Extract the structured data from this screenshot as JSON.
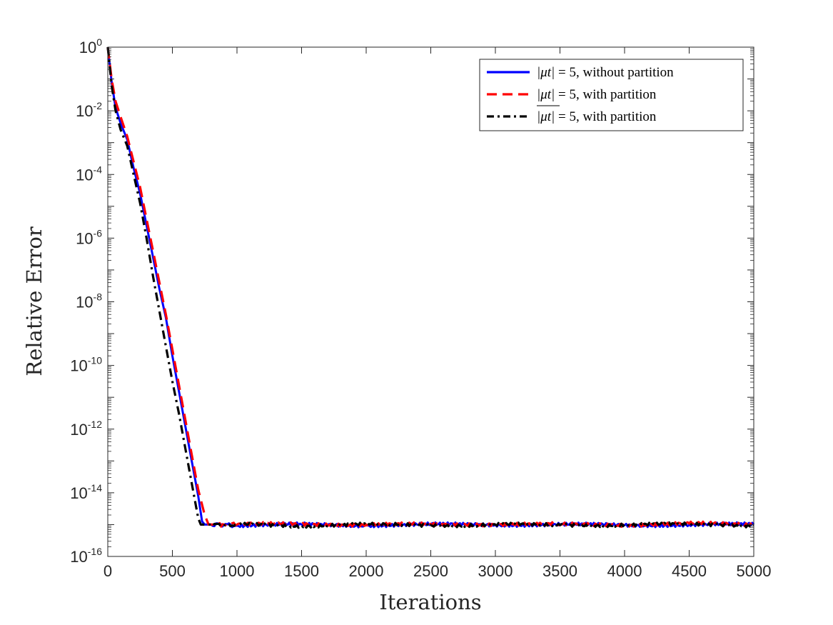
{
  "chart_data": {
    "type": "line",
    "xlabel": "Iterations",
    "ylabel": "Relative Error",
    "xlim": [
      0,
      5000
    ],
    "ylim": [
      1e-16,
      1
    ],
    "yscale": "log",
    "xticks": [
      0,
      500,
      1000,
      1500,
      2000,
      2500,
      3000,
      3500,
      4000,
      4500,
      5000
    ],
    "xtick_labels": [
      "0",
      "500",
      "1000",
      "1500",
      "2000",
      "2500",
      "3000",
      "3500",
      "4000",
      "4500",
      "5000"
    ],
    "yticks": [
      0,
      -2,
      -4,
      -6,
      -8,
      -10,
      -12,
      -14,
      -16
    ],
    "ytick_labels": [
      {
        "base": "10",
        "exp": "0"
      },
      {
        "base": "10",
        "exp": "-2"
      },
      {
        "base": "10",
        "exp": "-4"
      },
      {
        "base": "10",
        "exp": "-6"
      },
      {
        "base": "10",
        "exp": "-8"
      },
      {
        "base": "10",
        "exp": "-10"
      },
      {
        "base": "10",
        "exp": "-12"
      },
      {
        "base": "10",
        "exp": "-14"
      },
      {
        "base": "10",
        "exp": "-16"
      }
    ],
    "grid": false,
    "legend_position": "top-right",
    "series": [
      {
        "name": "|μt| = 5, without partition",
        "legend_math": "|μt|",
        "legend_text": " = 5, without partition",
        "color": "#0000ff",
        "style": "solid",
        "x": [
          0,
          30,
          60,
          100,
          150,
          200,
          250,
          300,
          350,
          400,
          450,
          500,
          550,
          600,
          650,
          700,
          730,
          750,
          800,
          900,
          1000,
          1500,
          2000,
          2500,
          3000,
          3500,
          4000,
          4500,
          5000
        ],
        "log10_y": [
          0,
          -1.1,
          -1.9,
          -2.4,
          -2.9,
          -3.8,
          -4.6,
          -5.6,
          -6.6,
          -7.6,
          -8.5,
          -9.7,
          -10.8,
          -11.9,
          -13.0,
          -14.1,
          -14.9,
          -15.0,
          -15.0,
          -15.0,
          -15.03,
          -15.0,
          -15.02,
          -15.0,
          -15.0,
          -15.0,
          -15.02,
          -15.0,
          -15.0
        ]
      },
      {
        "name": "|μt| = 5, with partition",
        "legend_math": "|μt|",
        "legend_text": " = 5, with partition",
        "color": "#ff0000",
        "style": "dashed",
        "x": [
          0,
          30,
          60,
          100,
          150,
          200,
          250,
          300,
          350,
          400,
          450,
          500,
          550,
          600,
          650,
          700,
          750,
          780,
          820,
          900,
          1000,
          1500,
          2000,
          2500,
          3000,
          3500,
          4000,
          4500,
          5000
        ],
        "log10_y": [
          0,
          -1.0,
          -1.7,
          -2.2,
          -2.8,
          -3.6,
          -4.4,
          -5.4,
          -6.4,
          -7.4,
          -8.4,
          -9.5,
          -10.6,
          -11.7,
          -12.8,
          -13.9,
          -14.7,
          -15.0,
          -15.0,
          -15.0,
          -15.0,
          -14.98,
          -15.0,
          -15.0,
          -14.98,
          -15.0,
          -15.0,
          -14.97,
          -15.0
        ]
      },
      {
        "name": "|μt| = 5, with partition",
        "legend_math": "|μt|",
        "legend_text": " = 5, with partition",
        "legend_overline": true,
        "color": "#000000",
        "style": "dashdot",
        "x": [
          0,
          30,
          60,
          100,
          150,
          200,
          250,
          300,
          350,
          400,
          450,
          500,
          550,
          600,
          650,
          700,
          720,
          750,
          800,
          900,
          1000,
          1500,
          2000,
          2500,
          3000,
          3500,
          4000,
          4500,
          5000
        ],
        "log10_y": [
          0,
          -1.2,
          -2.0,
          -2.6,
          -3.1,
          -4.0,
          -4.9,
          -6.0,
          -7.2,
          -8.3,
          -9.4,
          -10.5,
          -11.5,
          -12.6,
          -13.7,
          -14.8,
          -15.0,
          -15.0,
          -15.0,
          -15.02,
          -15.0,
          -15.03,
          -15.0,
          -15.02,
          -15.0,
          -15.02,
          -15.0,
          -15.0,
          -15.02
        ]
      }
    ]
  }
}
